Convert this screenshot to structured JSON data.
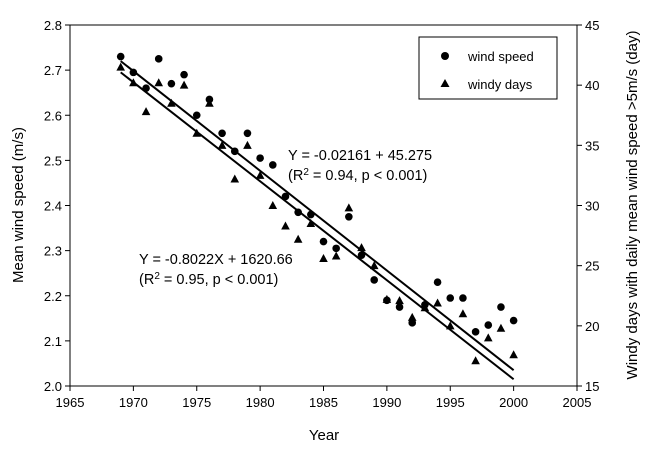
{
  "chart_data": {
    "type": "scatter",
    "xlabel": "Year",
    "ylabel_left": "Mean wind speed (m/s)",
    "ylabel_right": "Windy days with daily mean wind speed >5m/s (day)",
    "xlim": [
      1965,
      2005
    ],
    "ylim_left": [
      2.0,
      2.8
    ],
    "ylim_right": [
      15,
      45
    ],
    "x_ticks": [
      1965,
      1970,
      1975,
      1980,
      1985,
      1990,
      1995,
      2000,
      2005
    ],
    "y_left_ticks": [
      "2.0",
      "2.1",
      "2.2",
      "2.3",
      "2.4",
      "2.5",
      "2.6",
      "2.7",
      "2.8"
    ],
    "y_right_ticks": [
      "15",
      "20",
      "25",
      "30",
      "35",
      "40",
      "45"
    ],
    "grid": false,
    "legend_position": "top-right",
    "series": [
      {
        "name": "wind speed",
        "marker": "circle",
        "axis": "left",
        "x": [
          1969,
          1970,
          1971,
          1972,
          1973,
          1974,
          1975,
          1976,
          1977,
          1978,
          1979,
          1980,
          1981,
          1982,
          1983,
          1984,
          1985,
          1986,
          1987,
          1988,
          1989,
          1990,
          1991,
          1992,
          1993,
          1994,
          1995,
          1996,
          1997,
          1998,
          1999,
          2000
        ],
        "y": [
          2.73,
          2.695,
          2.66,
          2.725,
          2.67,
          2.69,
          2.6,
          2.635,
          2.56,
          2.52,
          2.56,
          2.505,
          2.49,
          2.42,
          2.385,
          2.38,
          2.32,
          2.305,
          2.375,
          2.29,
          2.235,
          2.19,
          2.175,
          2.14,
          2.18,
          2.23,
          2.195,
          2.195,
          2.12,
          2.135,
          2.175,
          2.145
        ]
      },
      {
        "name": "windy days",
        "marker": "triangle",
        "axis": "right",
        "x": [
          1969,
          1970,
          1971,
          1972,
          1973,
          1974,
          1975,
          1976,
          1977,
          1978,
          1979,
          1980,
          1981,
          1982,
          1983,
          1984,
          1985,
          1986,
          1987,
          1988,
          1989,
          1990,
          1991,
          1992,
          1993,
          1994,
          1995,
          1996,
          1997,
          1998,
          1999,
          2000
        ],
        "y": [
          41.5,
          40.2,
          37.8,
          40.2,
          38.5,
          40.0,
          36.0,
          38.5,
          35.0,
          32.2,
          35.0,
          32.5,
          30.0,
          28.3,
          27.2,
          28.5,
          25.6,
          25.8,
          29.8,
          26.5,
          25.0,
          22.2,
          22.1,
          20.7,
          21.5,
          21.9,
          20.0,
          21.0,
          17.1,
          19.0,
          19.8,
          17.6
        ]
      }
    ],
    "fits": [
      {
        "x": [
          1969,
          2000
        ],
        "y": [
          2.72,
          2.035
        ],
        "axis": "left"
      },
      {
        "x": [
          1969,
          2000
        ],
        "y": [
          2.695,
          2.015
        ],
        "axis": "left"
      }
    ],
    "annotations": [
      {
        "line1": "Y = -0.02161 + 45.275",
        "line2_pre": "(R",
        "line2_sup": "2",
        "line2_post": " = 0.94, p < 0.001)"
      },
      {
        "line1": "Y = -0.8022X + 1620.66",
        "line2_pre": "(R",
        "line2_sup": "2",
        "line2_post": " = 0.95, p < 0.001)"
      }
    ]
  }
}
